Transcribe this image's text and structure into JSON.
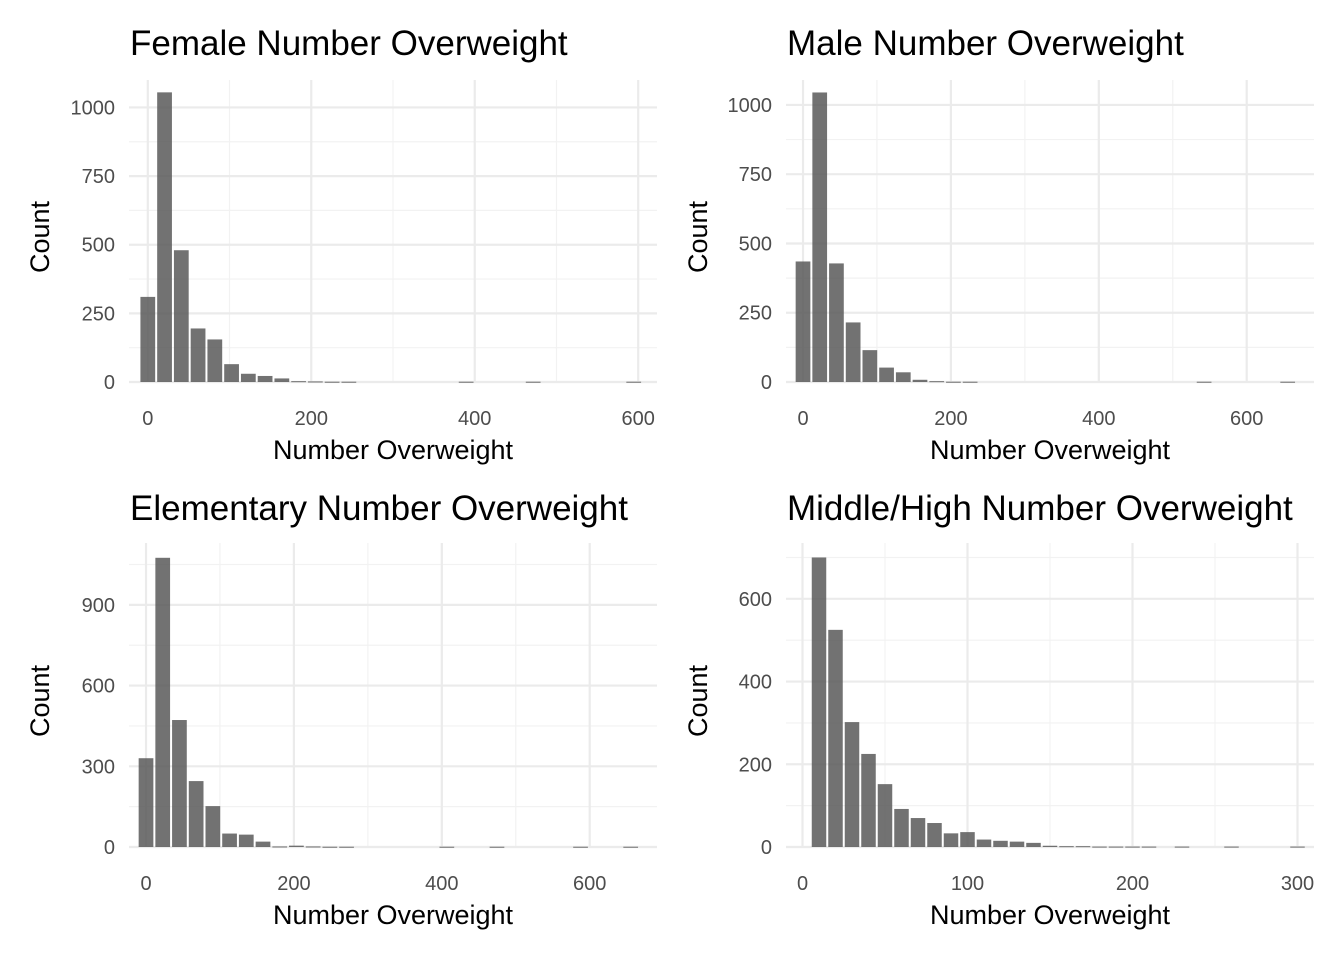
{
  "chart_data": [
    {
      "type": "bar",
      "title": "Female Number Overweight",
      "xlabel": "Number Overweight",
      "ylabel": "Count",
      "xlim": [
        -23,
        623
      ],
      "ylim": [
        0,
        1100
      ],
      "xticks": [
        0,
        200,
        400,
        600
      ],
      "xtick_labels": [
        "0",
        "200",
        "400",
        "600"
      ],
      "yticks": [
        0,
        250,
        500,
        750,
        1000
      ],
      "ytick_labels": [
        "0",
        "250",
        "500",
        "750",
        "1000"
      ],
      "bin_width": 20.5,
      "bin_centers": [
        0,
        20.5,
        41,
        61.5,
        82,
        102.5,
        123,
        143.5,
        164,
        184.5,
        205,
        225.5,
        246,
        266.5,
        287,
        307.5,
        328,
        348.5,
        369,
        389.5,
        410,
        430.5,
        451,
        471.5,
        492,
        512.5,
        533,
        553.5,
        574,
        594.5
      ],
      "values": [
        310,
        1055,
        480,
        195,
        155,
        65,
        30,
        22,
        13,
        3,
        2,
        1,
        1,
        0,
        0,
        0,
        0,
        0,
        0,
        1,
        0,
        0,
        0,
        1,
        0,
        0,
        0,
        0,
        0,
        1
      ],
      "grid": true,
      "legend": "none"
    },
    {
      "type": "bar",
      "title": "Male Number Overweight",
      "xlabel": "Number Overweight",
      "ylabel": "Count",
      "xlim": [
        -23,
        691
      ],
      "ylim": [
        0,
        1090
      ],
      "xticks": [
        0,
        200,
        400,
        600
      ],
      "xtick_labels": [
        "0",
        "200",
        "400",
        "600"
      ],
      "yticks": [
        0,
        250,
        500,
        750,
        1000
      ],
      "ytick_labels": [
        "0",
        "250",
        "500",
        "750",
        "1000"
      ],
      "bin_width": 22.6,
      "bin_centers": [
        0,
        22.6,
        45.2,
        67.8,
        90.4,
        113,
        135.6,
        158.2,
        180.8,
        203.4,
        226,
        248.6,
        271.2,
        293.8,
        316.4,
        339,
        361.6,
        384.2,
        406.8,
        429.4,
        452,
        474.6,
        497.2,
        519.8,
        542.4,
        565,
        587.6,
        610.2,
        632.8,
        655.4
      ],
      "values": [
        435,
        1045,
        428,
        215,
        115,
        52,
        35,
        8,
        3,
        1,
        1,
        0,
        0,
        0,
        0,
        0,
        0,
        0,
        0,
        0,
        0,
        0,
        0,
        0,
        1,
        0,
        0,
        0,
        0,
        1
      ],
      "grid": true,
      "legend": "none"
    },
    {
      "type": "bar",
      "title": "Elementary Number Overweight",
      "xlabel": "Number Overweight",
      "ylabel": "Count",
      "xlim": [
        -23,
        691
      ],
      "ylim": [
        0,
        1130
      ],
      "xticks": [
        0,
        200,
        400,
        600
      ],
      "xtick_labels": [
        "0",
        "200",
        "400",
        "600"
      ],
      "yticks": [
        0,
        300,
        600,
        900
      ],
      "ytick_labels": [
        "0",
        "300",
        "600",
        "900"
      ],
      "bin_width": 22.6,
      "bin_centers": [
        0,
        22.6,
        45.2,
        67.8,
        90.4,
        113,
        135.6,
        158.2,
        180.8,
        203.4,
        226,
        248.6,
        271.2,
        293.8,
        316.4,
        339,
        361.6,
        384.2,
        406.8,
        429.4,
        452,
        474.6,
        497.2,
        519.8,
        542.4,
        565,
        587.6,
        610.2,
        632.8,
        655.4
      ],
      "values": [
        330,
        1075,
        472,
        245,
        152,
        50,
        46,
        20,
        2,
        5,
        2,
        1,
        1,
        0,
        0,
        0,
        0,
        0,
        1,
        0,
        0,
        1,
        0,
        0,
        0,
        0,
        1,
        0,
        0,
        1
      ],
      "grid": true,
      "legend": "none"
    },
    {
      "type": "bar",
      "title": "Middle/High Number Overweight",
      "xlabel": "Number Overweight",
      "ylabel": "Count",
      "xlim": [
        -10,
        310
      ],
      "ylim": [
        0,
        735
      ],
      "xticks": [
        0,
        100,
        200,
        300
      ],
      "xtick_labels": [
        "0",
        "100",
        "200",
        "300"
      ],
      "yticks": [
        0,
        200,
        400,
        600
      ],
      "ytick_labels": [
        "0",
        "200",
        "400",
        "600"
      ],
      "bin_width": 10,
      "bin_centers": [
        10,
        20,
        30,
        40,
        50,
        60,
        70,
        80,
        90,
        100,
        110,
        120,
        130,
        140,
        150,
        160,
        170,
        180,
        190,
        200,
        210,
        220,
        230,
        240,
        250,
        260,
        270,
        280,
        290,
        300
      ],
      "values": [
        700,
        525,
        302,
        225,
        152,
        92,
        70,
        58,
        33,
        36,
        18,
        15,
        13,
        10,
        3,
        2,
        2,
        1,
        1,
        1,
        1,
        0,
        1,
        0,
        0,
        1,
        0,
        0,
        0,
        1
      ],
      "grid": true,
      "legend": "none"
    }
  ]
}
